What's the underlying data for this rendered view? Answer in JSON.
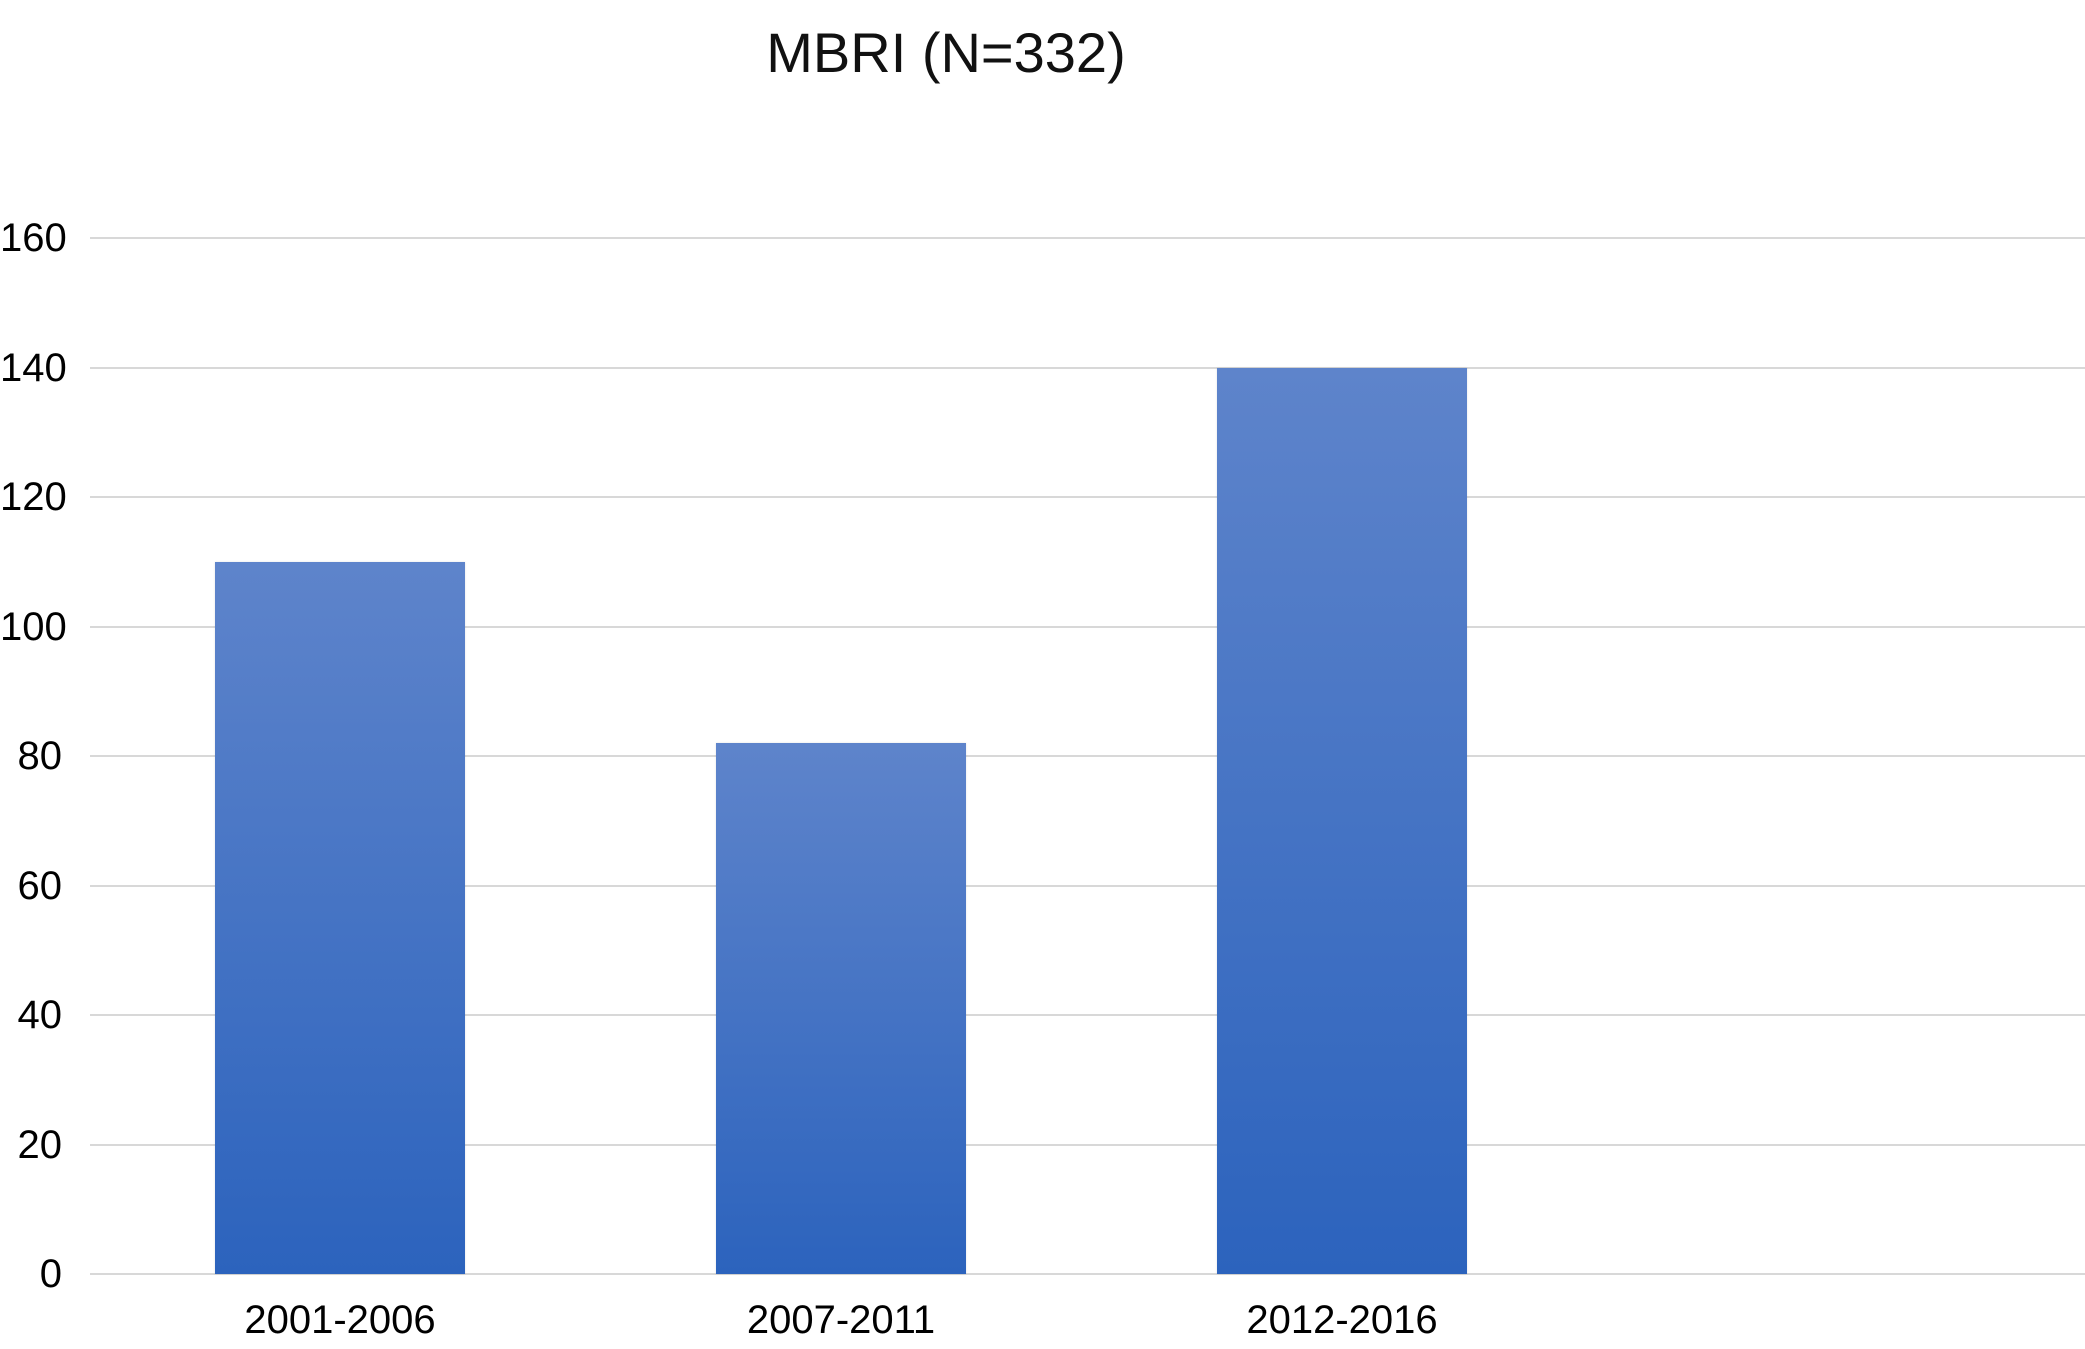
{
  "chart_data": {
    "type": "bar",
    "title": "MBRI (N=332)",
    "categories": [
      "2001-2006",
      "2007-2011",
      "2012-2016"
    ],
    "values": [
      110,
      82,
      140
    ],
    "xlabel": "",
    "ylabel": "",
    "ylim": [
      0,
      160
    ],
    "yticks": [
      0,
      20,
      40,
      60,
      80,
      100,
      120,
      140,
      160
    ],
    "grid": true,
    "legend": false,
    "colors": {
      "bar_gradient_top": "#5e84cb",
      "bar_gradient_bottom": "#2c63bd",
      "gridline": "#d8d8d8",
      "text": "#000000",
      "background": "#ffffff"
    }
  }
}
